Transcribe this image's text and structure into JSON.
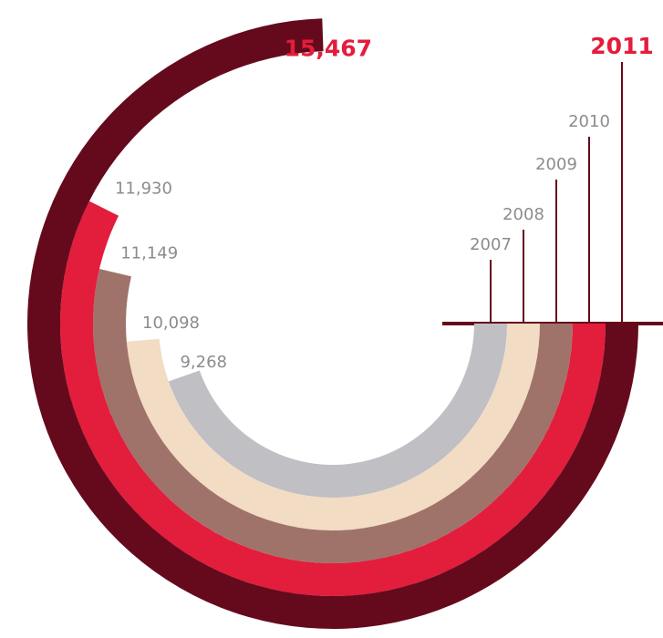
{
  "chart_data": {
    "type": "radial-bar",
    "categories": [
      "2007",
      "2008",
      "2009",
      "2010",
      "2011"
    ],
    "values": [
      9268,
      10098,
      11149,
      11930,
      15467
    ],
    "value_labels": [
      "9,268",
      "10,098",
      "11,149",
      "11,930",
      "15,467"
    ],
    "colors": [
      "#bfbfc4",
      "#f2dcc4",
      "#a0736a",
      "#e31d3c",
      "#650a1c"
    ]
  }
}
